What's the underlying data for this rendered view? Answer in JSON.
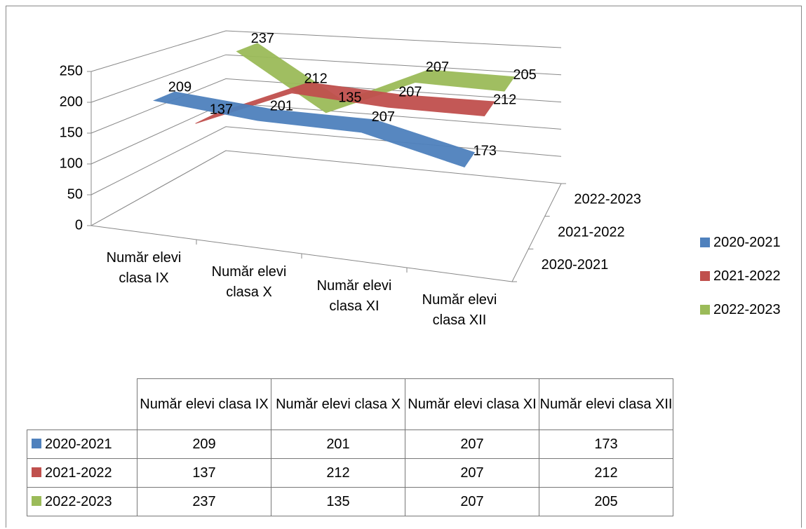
{
  "chart_data": {
    "type": "line3d",
    "categories": [
      "Număr elevi clasa IX",
      "Număr elevi clasa X",
      "Număr elevi clasa XI",
      "Număr elevi clasa XII"
    ],
    "series": [
      {
        "name": "2020-2021",
        "color": "#4f81bd",
        "values": [
          209,
          201,
          207,
          173
        ]
      },
      {
        "name": "2021-2022",
        "color": "#c0504d",
        "values": [
          137,
          212,
          207,
          212
        ]
      },
      {
        "name": "2022-2023",
        "color": "#9bbb59",
        "values": [
          237,
          135,
          207,
          205
        ]
      }
    ],
    "ylim": [
      0,
      250
    ],
    "yticks": [
      0,
      50,
      100,
      150,
      200,
      250
    ],
    "grid": true,
    "legend": "right",
    "data_table": true
  }
}
